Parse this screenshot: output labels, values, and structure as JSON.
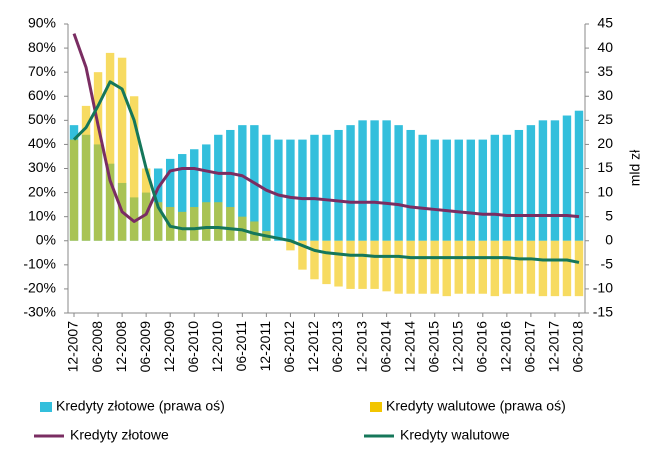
{
  "chart_data": {
    "type": "bar-line",
    "categories": [
      "12-2007",
      null,
      "06-2008",
      null,
      "12-2008",
      null,
      "06-2009",
      null,
      "12-2009",
      null,
      "06-2010",
      null,
      "12-2010",
      null,
      "06-2011",
      null,
      "12-2011",
      null,
      "06-2012",
      null,
      "12-2012",
      null,
      "06-2013",
      null,
      "12-2013",
      null,
      "06-2014",
      null,
      "12-2014",
      null,
      "06-2015",
      null,
      "12-2015",
      null,
      "06-2016",
      null,
      "12-2016",
      null,
      "06-2017",
      null,
      "12-2017",
      null,
      "06-2018"
    ],
    "series": [
      {
        "name": "Kredyty złotowe (prawa oś)",
        "type": "bar",
        "axis": "y2",
        "color": "#33bfdc",
        "values": [
          24,
          22,
          20,
          16,
          12,
          9,
          10,
          15,
          17,
          18,
          19,
          20,
          22,
          23,
          24,
          24,
          22,
          21,
          21,
          21,
          22,
          22,
          23,
          24,
          25,
          25,
          25,
          24,
          23,
          22,
          21,
          21,
          21,
          21,
          21,
          22,
          22,
          23,
          24,
          25,
          25,
          26,
          27
        ]
      },
      {
        "name": "Kredyty walutowe (prawa oś)",
        "type": "bar",
        "axis": "y2",
        "color": "#f2c500",
        "values": [
          21,
          28,
          35,
          39,
          38,
          30,
          15,
          8,
          7,
          6,
          7,
          8,
          8,
          7,
          5,
          4,
          2,
          0,
          -2,
          -6,
          -8,
          -9,
          -9.5,
          -10,
          -10,
          -10,
          -10.5,
          -11,
          -11,
          -11,
          -11,
          -11.5,
          -11,
          -11,
          -11,
          -11.5,
          -11,
          -11,
          -11,
          -11.5,
          -11.5,
          -11.5,
          -11.5
        ]
      },
      {
        "name": "Kredyty złotowe",
        "type": "line",
        "color": "#7a2d62",
        "values": [
          86,
          72,
          48,
          25,
          12,
          8,
          11,
          22,
          29,
          30,
          30,
          29,
          28,
          28,
          27,
          24,
          21,
          19,
          18,
          17.5,
          17.5,
          17,
          16.5,
          16,
          16,
          16,
          15.5,
          15,
          14,
          13.5,
          13,
          12.5,
          12,
          11.5,
          11,
          11,
          10.5,
          10.5,
          10.5,
          10.5,
          10.5,
          10.5,
          10
        ]
      },
      {
        "name": "Kredyty walutowe",
        "type": "line",
        "color": "#15775a",
        "values": [
          42,
          47,
          56,
          66,
          63,
          50,
          30,
          14,
          6,
          5,
          5,
          5.5,
          5.5,
          5,
          4.5,
          3,
          2,
          1,
          0,
          -2,
          -4,
          -5,
          -5.5,
          -6,
          -6,
          -6.5,
          -6.5,
          -6.5,
          -7,
          -7,
          -7,
          -7,
          -7,
          -7,
          -7,
          -7,
          -7,
          -7.5,
          -7.5,
          -8,
          -8,
          -8,
          -9
        ]
      }
    ],
    "ylim": [
      -30,
      90
    ],
    "yticks": [
      {
        "value": -30,
        "label": "-30%"
      },
      {
        "value": -20,
        "label": "-20%"
      },
      {
        "value": -10,
        "label": "-10%"
      },
      {
        "value": 0,
        "label": "0%"
      },
      {
        "value": 10,
        "label": "10%"
      },
      {
        "value": 20,
        "label": "20%"
      },
      {
        "value": 30,
        "label": "30%"
      },
      {
        "value": 40,
        "label": "40%"
      },
      {
        "value": 50,
        "label": "50%"
      },
      {
        "value": 60,
        "label": "60%"
      },
      {
        "value": 70,
        "label": "70%"
      },
      {
        "value": 80,
        "label": "80%"
      },
      {
        "value": 90,
        "label": "90%"
      }
    ],
    "y2lim": [
      -15,
      45
    ],
    "y2ticks": [
      -15,
      -10,
      -5,
      0,
      5,
      10,
      15,
      20,
      25,
      30,
      35,
      40,
      45
    ],
    "y2label": "mld zł"
  }
}
